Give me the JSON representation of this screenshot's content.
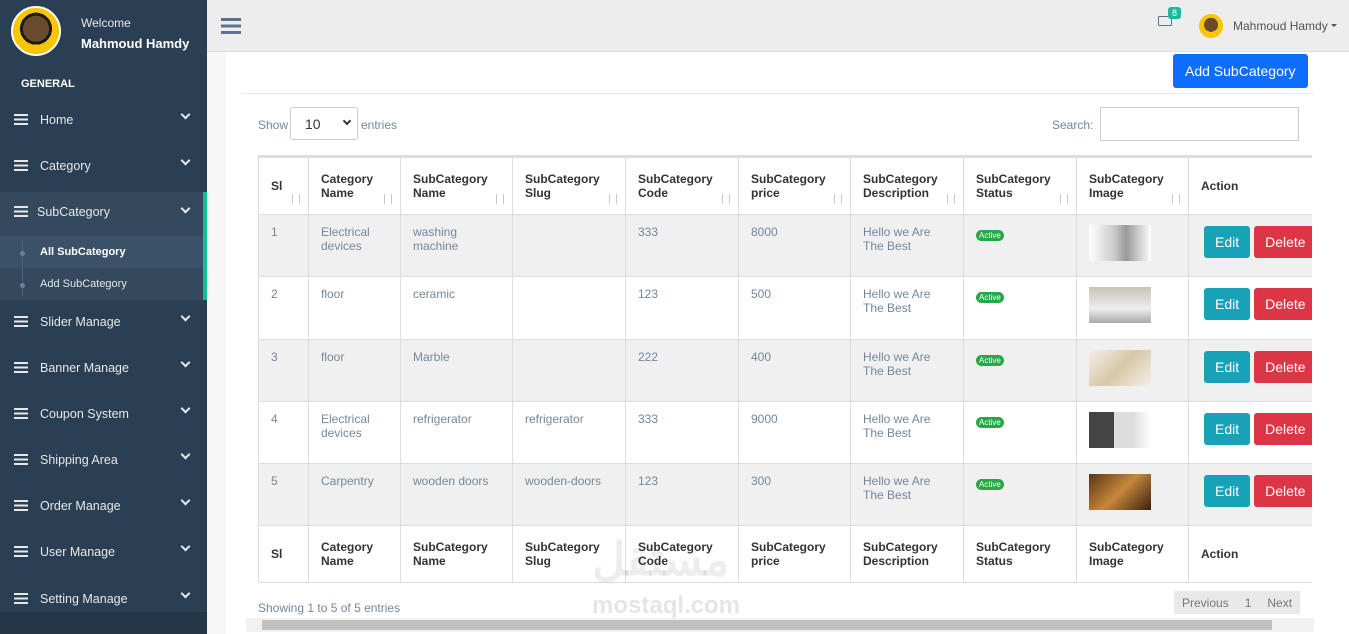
{
  "sidebar": {
    "welcome": "Welcome",
    "user": "Mahmoud Hamdy",
    "section": "GENERAL",
    "menu": [
      {
        "label": "Home"
      },
      {
        "label": "Category"
      },
      {
        "label": "SubCategory",
        "children": [
          "All SubCategory",
          "Add SubCategory"
        ]
      },
      {
        "label": "Slider Manage"
      },
      {
        "label": "Banner Manage"
      },
      {
        "label": "Coupon System"
      },
      {
        "label": "Shipping Area"
      },
      {
        "label": "Order Manage"
      },
      {
        "label": "User Manage"
      },
      {
        "label": "Setting Manage"
      }
    ]
  },
  "topbar": {
    "notifications": 8,
    "user": "Mahmoud Hamdy"
  },
  "content": {
    "add_button": "Add SubCategory",
    "show": "Show",
    "page_size": 10,
    "entries": "entries",
    "search": "Search:",
    "table": {
      "headers": [
        "Sl",
        "Category Name",
        "SubCategory Name",
        "SubCategory Slug",
        "SubCategory Code",
        "SubCategory price",
        "SubCategory Description",
        "SubCategory Status",
        "SubCategory Image",
        "Action"
      ],
      "rows": [
        [
          1,
          "Electrical devices",
          "washing machine",
          null,
          333,
          8000,
          "Hello we Are The Best",
          "Active"
        ],
        [
          2,
          "floor",
          "ceramic",
          null,
          123,
          500,
          "Hello we Are The Best",
          "Active"
        ],
        [
          3,
          "floor",
          "Marble",
          null,
          222,
          400,
          "Hello we Are The Best",
          "Active"
        ],
        [
          4,
          "Electrical devices",
          "refrigerator",
          "refrigerator",
          333,
          9000,
          "Hello we Are The Best",
          "Active"
        ],
        [
          5,
          "Carpentry",
          "wooden doors",
          "wooden-doors",
          123,
          300,
          "Hello we Are The Best",
          "Active"
        ]
      ],
      "actions": [
        "Edit",
        "Delete"
      ]
    },
    "info": "Showing 1 to 5 of 5 entries",
    "pagination": [
      "Previous",
      "1",
      "Next"
    ],
    "watermark": [
      "مستقل",
      "mostaql.com"
    ]
  }
}
